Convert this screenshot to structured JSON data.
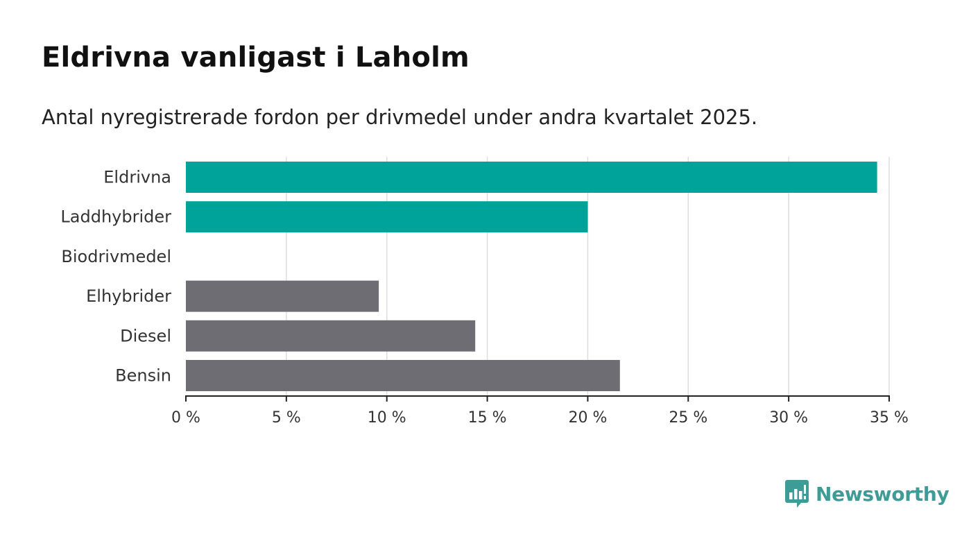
{
  "title": "Eldrivna vanligast i Laholm",
  "subtitle": "Antal nyregistrerade fordon per drivmedel under andra kvartalet 2025.",
  "brand": {
    "name": "Newsworthy",
    "color": "#3f9b96",
    "icon": "bar-chart-speech-bubble-icon"
  },
  "chart_data": {
    "type": "bar",
    "orientation": "horizontal",
    "categories": [
      "Eldrivna",
      "Laddhybrider",
      "Biodrivmedel",
      "Elhybrider",
      "Diesel",
      "Bensin"
    ],
    "values": [
      34.4,
      20.0,
      0,
      9.6,
      14.4,
      21.6
    ],
    "colors": [
      "#00a39a",
      "#00a39a",
      "#00a39a",
      "#6e6d73",
      "#6e6d73",
      "#6e6d73"
    ],
    "xlim": [
      0,
      35
    ],
    "xticks": [
      0,
      5,
      10,
      15,
      20,
      25,
      30,
      35
    ],
    "xtick_labels": [
      "0 %",
      "5 %",
      "10 %",
      "15 %",
      "20 %",
      "25 %",
      "30 %",
      "35 %"
    ],
    "grid": true,
    "xlabel": "",
    "ylabel": ""
  }
}
